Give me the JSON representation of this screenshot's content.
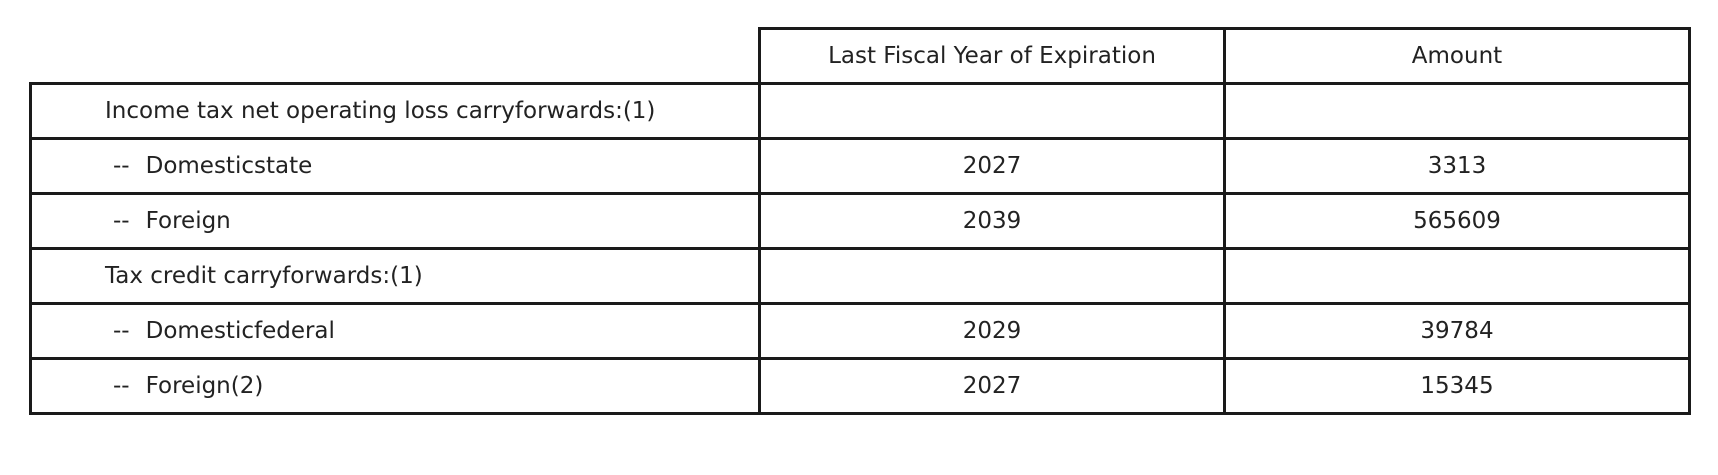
{
  "table": {
    "headers": [
      "",
      "Last Fiscal Year of Expiration",
      "Amount"
    ],
    "rows": [
      {
        "type": "section",
        "label": "Income tax net operating loss carryforwards:(1)",
        "year": "",
        "amount": ""
      },
      {
        "type": "item",
        "prefix": "--",
        "label": "Domesticstate",
        "year": "2027",
        "amount": "3313"
      },
      {
        "type": "item",
        "prefix": "--",
        "label": "Foreign",
        "year": "2039",
        "amount": "565609"
      },
      {
        "type": "section",
        "label": "Tax credit carryforwards:(1)",
        "year": "",
        "amount": ""
      },
      {
        "type": "item",
        "prefix": "--",
        "label": "Domesticfederal",
        "year": "2029",
        "amount": "39784"
      },
      {
        "type": "item",
        "prefix": "--",
        "label": "Foreign(2)",
        "year": "2027",
        "amount": "15345"
      }
    ]
  }
}
